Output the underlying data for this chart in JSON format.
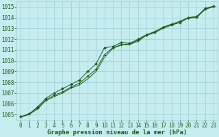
{
  "title": "Graphe pression niveau de la mer (hPa)",
  "background_color": "#c5ecee",
  "grid_color": "#9dcdd4",
  "line_color": "#1a5c1a",
  "marker_color": "#1a5c1a",
  "xlim": [
    -0.5,
    23.5
  ],
  "ylim": [
    1004.5,
    1015.5
  ],
  "yticks": [
    1005,
    1006,
    1007,
    1008,
    1009,
    1010,
    1011,
    1012,
    1013,
    1014,
    1015
  ],
  "xticks": [
    0,
    1,
    2,
    3,
    4,
    5,
    6,
    7,
    8,
    9,
    10,
    11,
    12,
    13,
    14,
    15,
    16,
    17,
    18,
    19,
    20,
    21,
    22,
    23
  ],
  "series_upper": [
    1004.8,
    1005.05,
    1005.7,
    1006.5,
    1007.0,
    1007.4,
    1007.8,
    1008.2,
    1009.0,
    1009.7,
    1011.2,
    1011.3,
    1011.7,
    1011.6,
    1012.0,
    1012.4,
    1012.65,
    1013.1,
    1013.35,
    1013.55,
    1014.0,
    1014.05,
    1014.85,
    1015.05
  ],
  "series_mid": [
    1004.8,
    1005.05,
    1005.6,
    1006.35,
    1006.8,
    1007.1,
    1007.55,
    1007.9,
    1008.55,
    1009.2,
    1010.55,
    1011.2,
    1011.5,
    1011.55,
    1011.9,
    1012.4,
    1012.7,
    1013.1,
    1013.4,
    1013.65,
    1014.0,
    1014.1,
    1014.8,
    1015.05
  ],
  "series_lower": [
    1004.75,
    1005.0,
    1005.5,
    1006.3,
    1006.65,
    1007.0,
    1007.45,
    1007.75,
    1008.3,
    1009.0,
    1010.3,
    1011.15,
    1011.45,
    1011.5,
    1011.8,
    1012.35,
    1012.6,
    1013.0,
    1013.3,
    1013.55,
    1013.95,
    1014.0,
    1014.75,
    1015.0
  ],
  "font_size_label": 6.5,
  "font_size_tick": 5.5
}
